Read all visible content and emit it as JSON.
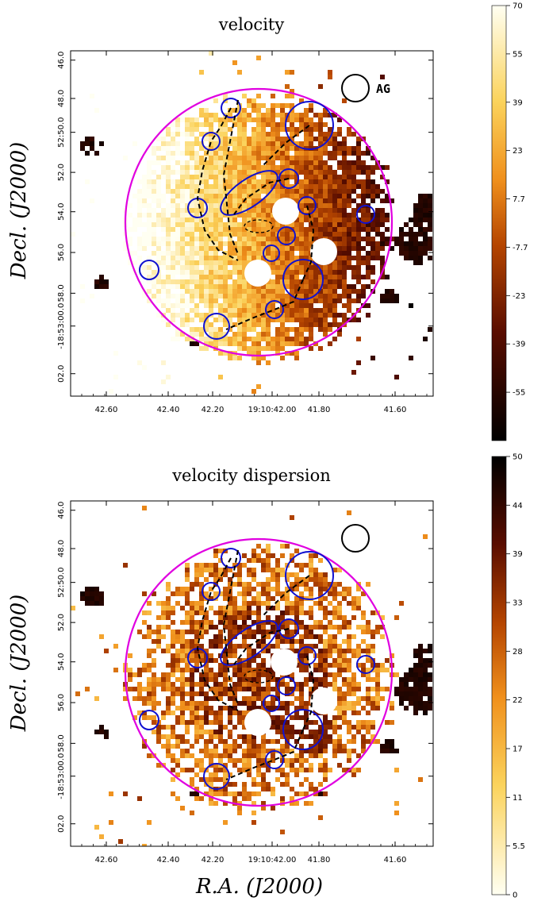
{
  "panels": [
    {
      "id": "velocity",
      "title": "velocity",
      "ylabel": "Decl. (J2000)",
      "beam_label": "AG",
      "x_ticks": [
        "42.60",
        "42.40",
        "42.20",
        "19:10:42.00",
        "41.80",
        "41.60"
      ],
      "y_ticks": [
        "46.0",
        "48.0",
        "52:50.0",
        "52.0",
        "54.0",
        "56.0",
        "58.0",
        "-18:53:00.0",
        "02.0"
      ],
      "colorbar": {
        "cmap": "velocity",
        "range": [
          -70,
          70
        ],
        "ticks": [
          "70",
          "55",
          "39",
          "23",
          "7.7",
          "-7.7",
          "-23",
          "-39",
          "-55"
        ]
      }
    },
    {
      "id": "dispersion",
      "title": "velocity dispersion",
      "ylabel": "Decl. (J2000)",
      "xlabel": "R.A. (J2000)",
      "x_ticks": [
        "42.60",
        "42.40",
        "42.20",
        "19:10:42.00",
        "41.80",
        "41.60"
      ],
      "y_ticks": [
        "46.0",
        "48.0",
        "52:50.0",
        "52.0",
        "54.0",
        "56.0",
        "58.0",
        "-18:53:00.0",
        "02.0"
      ],
      "colorbar": {
        "cmap": "dispersion",
        "range": [
          0,
          50
        ],
        "ticks": [
          "50",
          "44",
          "39",
          "33",
          "28",
          "22",
          "17",
          "11",
          "5.5",
          "0"
        ]
      }
    }
  ],
  "colors": {
    "aperture": "#e000e0",
    "regions": "#1010d0",
    "paths": "#000000",
    "masked": "#ffffff"
  },
  "chart_data": [
    {
      "type": "heatmap",
      "title": "velocity",
      "ylabel": "Decl. (J2000)",
      "x_ticks": [
        "42.60",
        "42.40",
        "42.20",
        "19:10:42.00",
        "41.80",
        "41.60"
      ],
      "y_ticks": [
        "46.0",
        "48.0",
        "52:50.0",
        "52.0",
        "54.0",
        "56.0",
        "58.0",
        "-18:53:00.0",
        "02.0"
      ],
      "colorbar_range": [
        -70,
        70
      ]
    },
    {
      "type": "heatmap",
      "title": "velocity dispersion",
      "xlabel": "R.A. (J2000)",
      "ylabel": "Decl. (J2000)",
      "x_ticks": [
        "42.60",
        "42.40",
        "42.20",
        "19:10:42.00",
        "41.80",
        "41.60"
      ],
      "y_ticks": [
        "46.0",
        "48.0",
        "52:50.0",
        "52.0",
        "54.0",
        "56.0",
        "58.0",
        "-18:53:00.0",
        "02.0"
      ],
      "colorbar_range": [
        0,
        50
      ]
    }
  ]
}
